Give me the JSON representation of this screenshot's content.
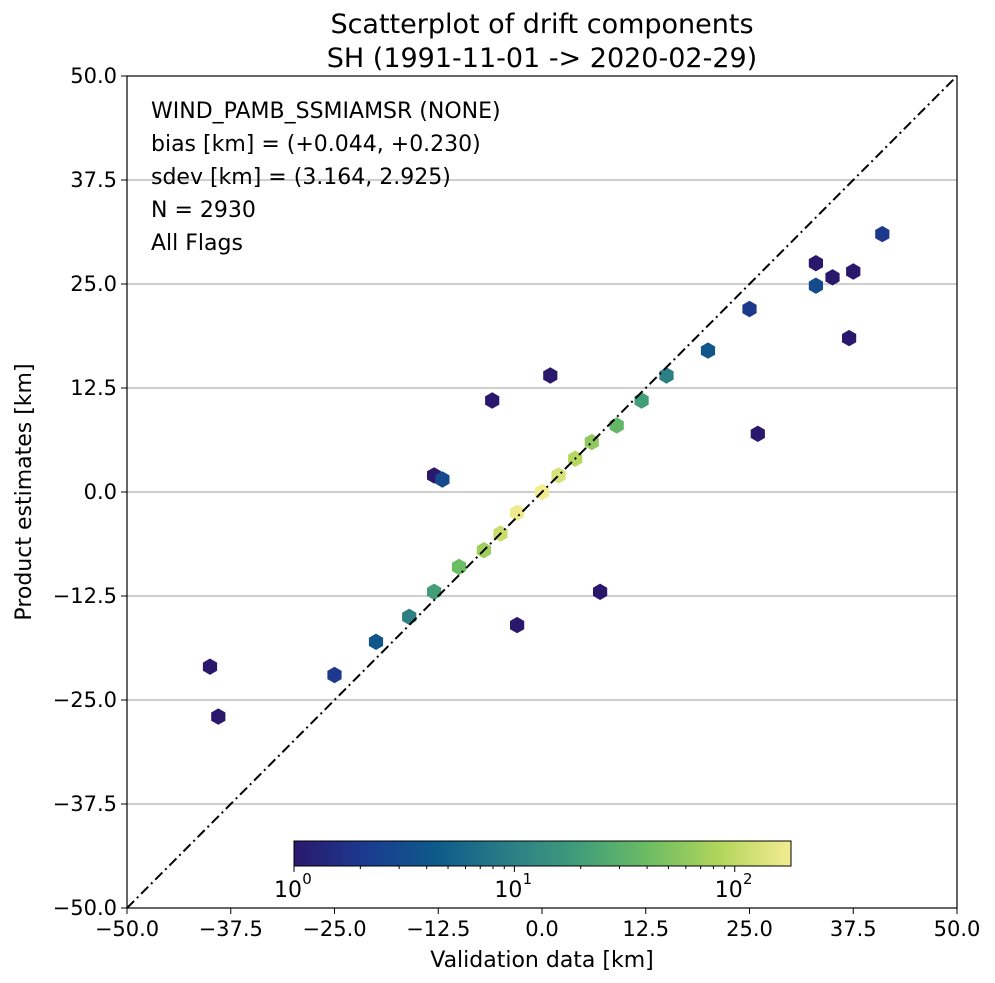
{
  "chart_data": {
    "type": "hexbin",
    "title_lines": [
      "Scatterplot of drift components",
      "SH (1991-11-01 -> 2020-02-29)"
    ],
    "xlabel": "Validation data [km]",
    "ylabel": "Product estimates [km]",
    "xlim": [
      -50,
      50
    ],
    "ylim": [
      -50,
      50
    ],
    "xticks": [
      -50,
      -37.5,
      -25,
      -12.5,
      0,
      12.5,
      25,
      37.5,
      50
    ],
    "yticks": [
      -50,
      -37.5,
      -25,
      -12.5,
      0,
      12.5,
      25,
      37.5,
      50
    ],
    "xtick_labels": [
      "−50.0",
      "−37.5",
      "−25.0",
      "−12.5",
      "0.0",
      "12.5",
      "25.0",
      "37.5",
      "50.0"
    ],
    "ytick_labels": [
      "−50.0",
      "−37.5",
      "−25.0",
      "−12.5",
      "0.0",
      "12.5",
      "25.0",
      "37.5",
      "50.0"
    ],
    "grid": "horizontal",
    "reference_line": "1:1 dash-dot",
    "annotations": [
      "WIND_PAMB_SSMIAMSR (NONE)",
      "bias [km] = (+0.044, +0.230)",
      "sdev [km] = (3.164, 2.925)",
      "N = 2930",
      "All Flags"
    ],
    "colorbar": {
      "scale": "log",
      "range": [
        1,
        180
      ],
      "ticks": [
        1,
        10,
        100
      ],
      "tick_labels": [
        "10",
        "10",
        "10"
      ],
      "tick_exponents": [
        "0",
        "1",
        "2"
      ],
      "colormap": "haline",
      "colors": [
        "#2a186c",
        "#1b3b8f",
        "#0e5a8a",
        "#2a7d86",
        "#3f9d7a",
        "#6cbd62",
        "#b2d55b",
        "#f3ec92"
      ]
    },
    "points": [
      {
        "x": 0,
        "y": 0,
        "count": 180
      },
      {
        "x": -3,
        "y": -2.5,
        "count": 170
      },
      {
        "x": 2,
        "y": 2,
        "count": 130
      },
      {
        "x": -5,
        "y": -5,
        "count": 110
      },
      {
        "x": 4,
        "y": 4,
        "count": 90
      },
      {
        "x": -7,
        "y": -7,
        "count": 70
      },
      {
        "x": 6,
        "y": 6,
        "count": 60
      },
      {
        "x": -10,
        "y": -9,
        "count": 40
      },
      {
        "x": 9,
        "y": 8,
        "count": 35
      },
      {
        "x": 12,
        "y": 11,
        "count": 20
      },
      {
        "x": -13,
        "y": -12,
        "count": 20
      },
      {
        "x": -16,
        "y": -15,
        "count": 10
      },
      {
        "x": 15,
        "y": 14,
        "count": 10
      },
      {
        "x": -20,
        "y": -18,
        "count": 4
      },
      {
        "x": 20,
        "y": 17,
        "count": 4
      },
      {
        "x": -25,
        "y": -22,
        "count": 2
      },
      {
        "x": 25,
        "y": 22,
        "count": 2
      },
      {
        "x": -40,
        "y": -21,
        "count": 1
      },
      {
        "x": -39,
        "y": -27,
        "count": 1
      },
      {
        "x": 41,
        "y": 31,
        "count": 2
      },
      {
        "x": 37.5,
        "y": 26.5,
        "count": 1
      },
      {
        "x": 33,
        "y": 27.5,
        "count": 1
      },
      {
        "x": 35,
        "y": 25.8,
        "count": 1
      },
      {
        "x": 33,
        "y": 24.8,
        "count": 3
      },
      {
        "x": 37,
        "y": 18.5,
        "count": 1
      },
      {
        "x": 26,
        "y": 7,
        "count": 1
      },
      {
        "x": 7,
        "y": -12,
        "count": 1
      },
      {
        "x": -3,
        "y": -16,
        "count": 1
      },
      {
        "x": -13,
        "y": 2,
        "count": 1
      },
      {
        "x": -12,
        "y": 1.5,
        "count": 3
      },
      {
        "x": -6,
        "y": 11,
        "count": 1
      },
      {
        "x": 1,
        "y": 14,
        "count": 1
      }
    ]
  }
}
